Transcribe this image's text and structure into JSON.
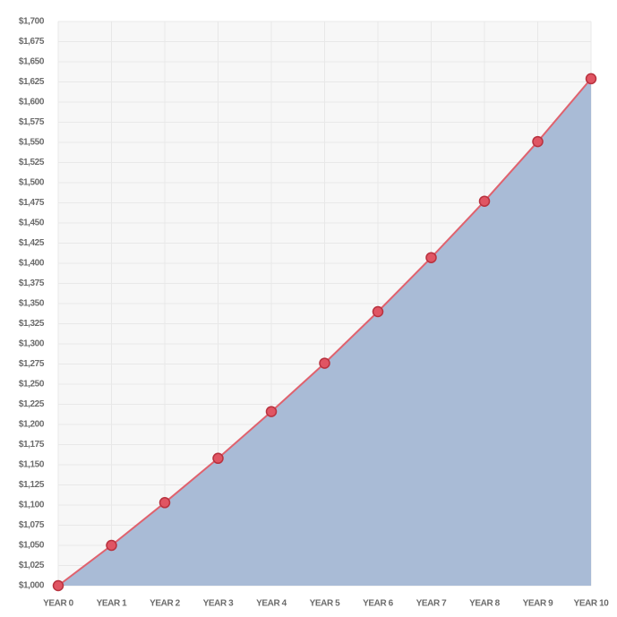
{
  "chart_data": {
    "type": "area",
    "categories": [
      "YEAR 0",
      "YEAR 1",
      "YEAR 2",
      "YEAR 3",
      "YEAR 4",
      "YEAR 5",
      "YEAR 6",
      "YEAR 7",
      "YEAR 8",
      "YEAR 9",
      "YEAR 10"
    ],
    "values": [
      1000,
      1050,
      1103,
      1158,
      1216,
      1276,
      1340,
      1407,
      1477,
      1551,
      1629
    ],
    "fill_color": "#a9bbd6",
    "line_color": "#e0626e",
    "marker_color": "#e05563",
    "marker_edge_color": "#b8323f",
    "ylim": [
      1000,
      1700
    ],
    "yticks": [
      {
        "value": 1000,
        "label": "$1,000"
      },
      {
        "value": 1025,
        "label": "$1,025"
      },
      {
        "value": 1050,
        "label": "$1,050"
      },
      {
        "value": 1075,
        "label": "$1,075"
      },
      {
        "value": 1100,
        "label": "$1,100"
      },
      {
        "value": 1125,
        "label": "$1,125"
      },
      {
        "value": 1150,
        "label": "$1,150"
      },
      {
        "value": 1175,
        "label": "$1,175"
      },
      {
        "value": 1200,
        "label": "$1,200"
      },
      {
        "value": 1225,
        "label": "$1,225"
      },
      {
        "value": 1250,
        "label": "$1,250"
      },
      {
        "value": 1275,
        "label": "$1,275"
      },
      {
        "value": 1300,
        "label": "$1,300"
      },
      {
        "value": 1325,
        "label": "$1,325"
      },
      {
        "value": 1350,
        "label": "$1,350"
      },
      {
        "value": 1375,
        "label": "$1,375"
      },
      {
        "value": 1400,
        "label": "$1,400"
      },
      {
        "value": 1425,
        "label": "$1,425"
      },
      {
        "value": 1450,
        "label": "$1,450"
      },
      {
        "value": 1475,
        "label": "$1,475"
      },
      {
        "value": 1500,
        "label": "$1,500"
      },
      {
        "value": 1525,
        "label": "$1,525"
      },
      {
        "value": 1550,
        "label": "$1,550"
      },
      {
        "value": 1575,
        "label": "$1,575"
      },
      {
        "value": 1600,
        "label": "$1,600"
      },
      {
        "value": 1625,
        "label": "$1,625"
      },
      {
        "value": 1650,
        "label": "$1,650"
      },
      {
        "value": 1675,
        "label": "$1,675"
      },
      {
        "value": 1700,
        "label": "$1,700"
      }
    ],
    "grid": true
  }
}
